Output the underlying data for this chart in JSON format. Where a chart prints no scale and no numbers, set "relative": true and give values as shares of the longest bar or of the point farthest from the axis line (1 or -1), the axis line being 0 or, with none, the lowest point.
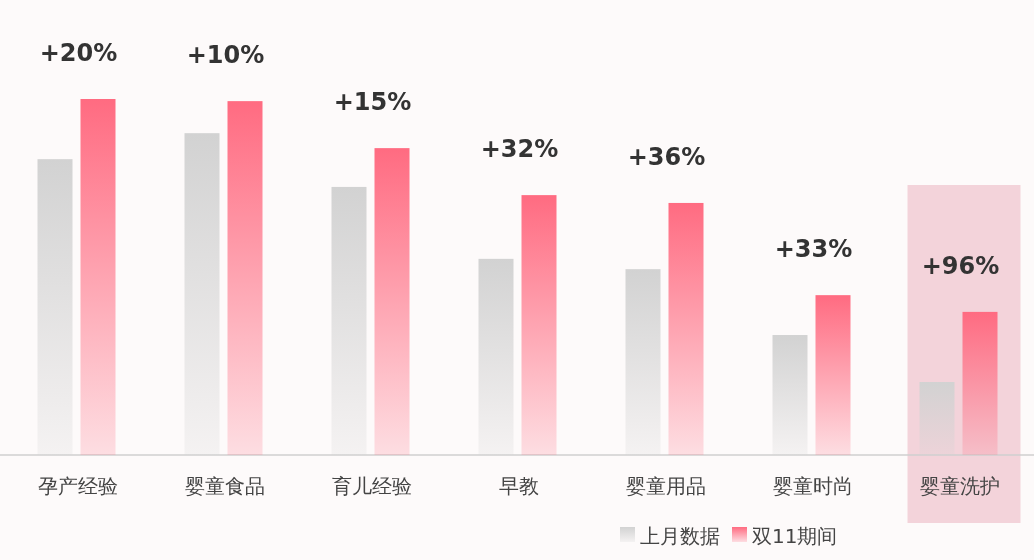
{
  "chart_data": {
    "type": "bar",
    "relative": true,
    "categories": [
      "孕产经验",
      "婴童食品",
      "育儿经验",
      "早教",
      "婴童用品",
      "婴童时尚",
      "婴童洗护"
    ],
    "series": [
      {
        "name": "上月数据",
        "color": "#d2d2d2",
        "values": [
          0.831,
          0.904,
          0.753,
          0.551,
          0.522,
          0.337,
          0.205
        ]
      },
      {
        "name": "双11期间",
        "color": "#ff6b81",
        "values": [
          1,
          0.994,
          0.862,
          0.73,
          0.708,
          0.449,
          0.402
        ]
      }
    ],
    "annotations": [
      {
        "text": "+20%",
        "x": "孕产经验",
        "y": 1
      },
      {
        "text": "+10%",
        "x": "婴童食品",
        "y": 0.994
      },
      {
        "text": "+15%",
        "x": "育儿经验",
        "y": 0.862
      },
      {
        "text": "+32%",
        "x": "早教",
        "y": 0.73
      },
      {
        "text": "+36%",
        "x": "婴童用品",
        "y": 0.708
      },
      {
        "text": "+33%",
        "x": "婴童时尚",
        "y": 0.449
      },
      {
        "text": "+96%",
        "x": "婴童洗护",
        "y": 0.402
      }
    ],
    "bands": [
      {
        "axis": "x",
        "from": "婴童洗护",
        "to": "婴童洗护",
        "color": "#f3d3da"
      }
    ],
    "legend": "bottom right"
  }
}
